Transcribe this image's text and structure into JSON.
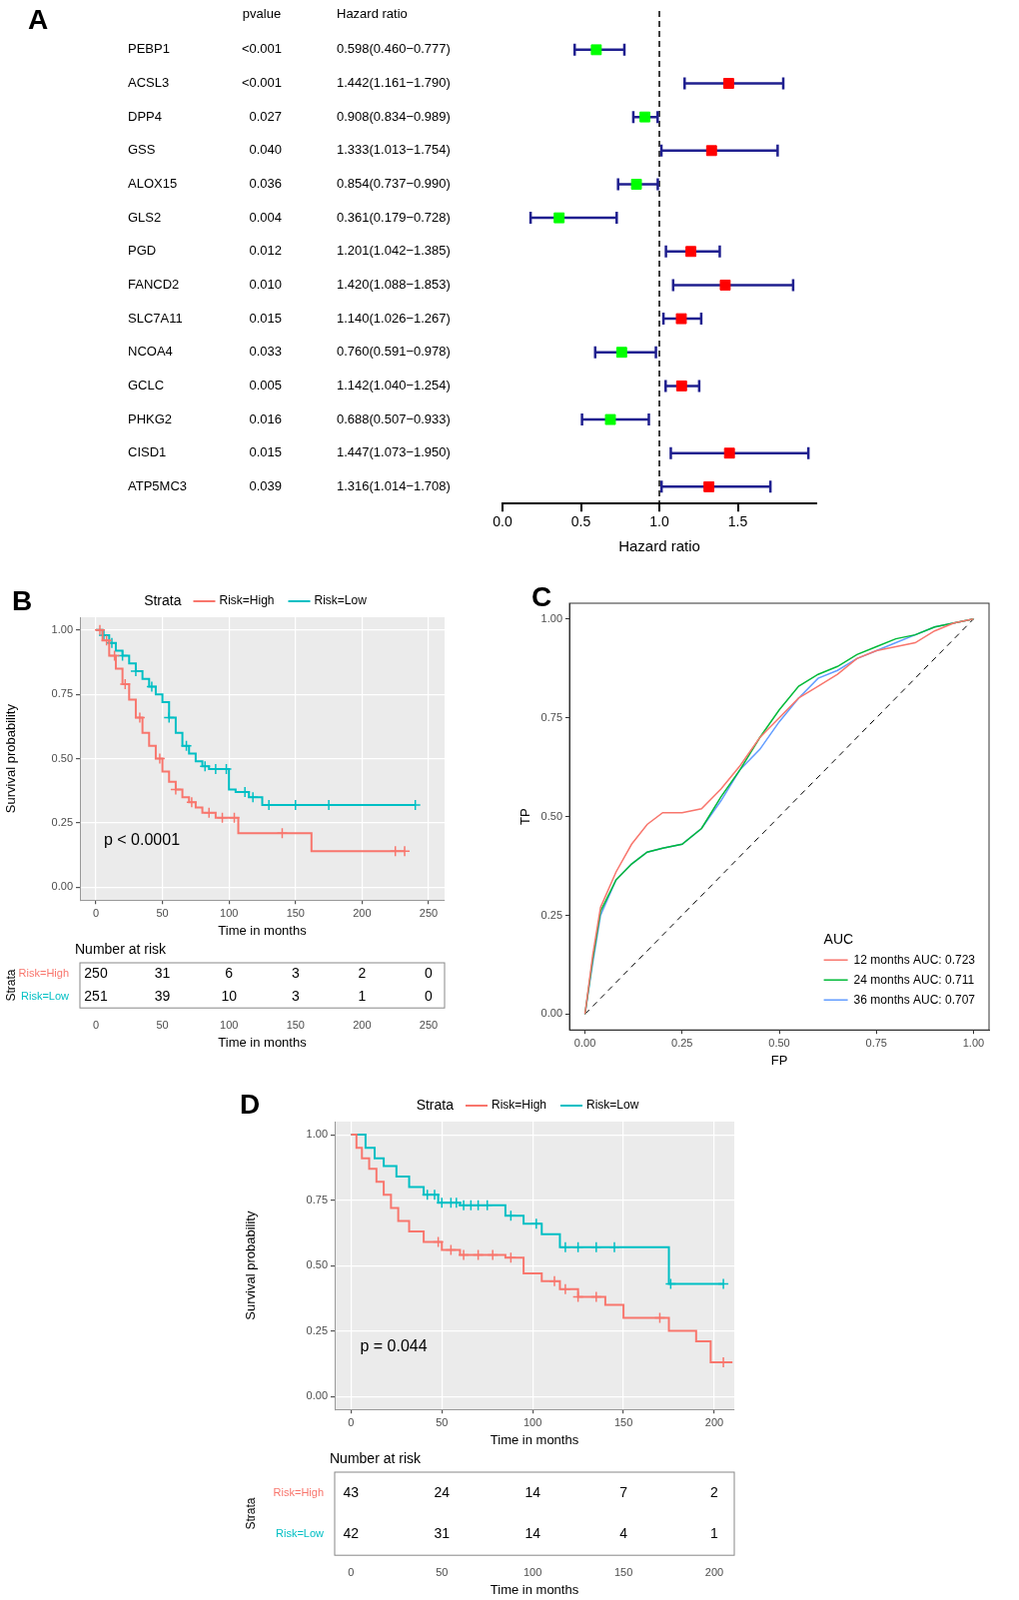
{
  "chart_data": [
    {
      "panel": "A",
      "type": "forest",
      "categories": [
        "PEBP1",
        "ACSL3",
        "DPP4",
        "GSS",
        "ALOX15",
        "GLS2",
        "PGD",
        "FANCD2",
        "SLC7A11",
        "NCOA4",
        "GCLC",
        "PHKG2",
        "CISD1",
        "ATP5MC3"
      ],
      "pvalue_header": "pvalue",
      "pvalues": [
        "<0.001",
        "<0.001",
        "0.027",
        "0.040",
        "0.036",
        "0.004",
        "0.012",
        "0.010",
        "0.015",
        "0.033",
        "0.005",
        "0.016",
        "0.015",
        "0.039"
      ],
      "value_header": "Hazard ratio",
      "values": [
        0.598,
        1.442,
        0.908,
        1.333,
        0.854,
        0.361,
        1.201,
        1.42,
        1.14,
        0.76,
        1.142,
        0.688,
        1.447,
        1.316
      ],
      "lower": [
        0.46,
        1.161,
        0.834,
        1.013,
        0.737,
        0.179,
        1.042,
        1.088,
        1.026,
        0.591,
        1.04,
        0.507,
        1.073,
        1.014
      ],
      "upper": [
        0.777,
        1.79,
        0.989,
        1.754,
        0.99,
        0.728,
        1.385,
        1.853,
        1.267,
        0.978,
        1.254,
        0.933,
        1.95,
        1.708
      ],
      "value_labels": [
        "0.598(0.460−0.777)",
        "1.442(1.161−1.790)",
        "0.908(0.834−0.989)",
        "1.333(1.013−1.754)",
        "0.854(0.737−0.990)",
        "0.361(0.179−0.728)",
        "1.201(1.042−1.385)",
        "1.420(1.088−1.853)",
        "1.140(1.026−1.267)",
        "0.760(0.591−0.978)",
        "1.142(1.040−1.254)",
        "0.688(0.507−0.933)",
        "1.447(1.073−1.950)",
        "1.316(1.014−1.708)"
      ],
      "colors": [
        "#00FF00",
        "#FF0000",
        "#00FF00",
        "#FF0000",
        "#00FF00",
        "#00FF00",
        "#FF0000",
        "#FF0000",
        "#FF0000",
        "#00FF00",
        "#FF0000",
        "#00FF00",
        "#FF0000",
        "#FF0000"
      ],
      "x_label": "Hazard ratio",
      "xlim": [
        0,
        2
      ],
      "xticks": [
        {
          "value": 0,
          "label": "0.0"
        },
        0.5,
        {
          "value": 1,
          "label": "1.0"
        },
        1.5
      ],
      "reference_line": 1,
      "marker": "square",
      "grid": false
    },
    {
      "panel": "B",
      "type": "survival",
      "legend": "top",
      "legend_title": "Strata",
      "series": [
        {
          "name": "Risk=High",
          "color": "#F8766D",
          "x": [
            0,
            5,
            10,
            15,
            20,
            25,
            30,
            35,
            40,
            45,
            50,
            55,
            60,
            65,
            70,
            75,
            80,
            90,
            100,
            107,
            162,
            232
          ],
          "values": [
            1,
            0.96,
            0.9,
            0.85,
            0.79,
            0.73,
            0.66,
            0.6,
            0.55,
            0.5,
            0.45,
            0.41,
            0.38,
            0.35,
            0.33,
            0.31,
            0.29,
            0.27,
            0.27,
            0.21,
            0.14,
            0.14
          ],
          "censor_x": [
            3,
            8,
            14,
            22,
            33,
            48,
            60,
            72,
            85,
            95,
            104,
            140,
            225,
            232
          ]
        },
        {
          "name": "Risk=Low",
          "color": "#00BFC4",
          "x": [
            0,
            5,
            10,
            15,
            20,
            25,
            30,
            35,
            40,
            45,
            50,
            55,
            60,
            65,
            70,
            75,
            80,
            85,
            100,
            105,
            115,
            125,
            240
          ],
          "values": [
            1,
            0.98,
            0.95,
            0.92,
            0.9,
            0.87,
            0.84,
            0.81,
            0.78,
            0.75,
            0.72,
            0.66,
            0.6,
            0.55,
            0.52,
            0.49,
            0.47,
            0.46,
            0.38,
            0.37,
            0.35,
            0.32,
            0.32
          ],
          "censor_x": [
            6,
            12,
            20,
            30,
            42,
            55,
            68,
            82,
            90,
            98,
            112,
            118,
            130,
            150,
            175,
            240
          ]
        }
      ],
      "x_label": "Time in months",
      "y_label": "Survival probability",
      "xlim": [
        -12,
        262
      ],
      "xticks": [
        0,
        50,
        100,
        150,
        200,
        250
      ],
      "ylim": [
        -0.05,
        1.05
      ],
      "yticks": [
        {
          "value": 0,
          "label": "0.00"
        },
        {
          "value": 0.25,
          "label": "0.25"
        },
        {
          "value": 0.5,
          "label": "0.50"
        },
        {
          "value": 0.75,
          "label": "0.75"
        },
        {
          "value": 1,
          "label": "1.00"
        }
      ],
      "grid": true,
      "annotations": [
        {
          "text": "p < 0.0001",
          "x": 6,
          "y": 0.18
        }
      ],
      "risk_table": {
        "title": "Number at risk",
        "y_label": "Strata",
        "x_label": "Time in months",
        "times": [
          0,
          50,
          100,
          150,
          200,
          250
        ],
        "rows": [
          {
            "name": "Risk=High",
            "color": "#F8766D",
            "values": [
              250,
              31,
              6,
              3,
              2,
              0
            ]
          },
          {
            "name": "Risk=Low",
            "color": "#00BFC4",
            "values": [
              251,
              39,
              10,
              3,
              1,
              0
            ]
          }
        ]
      }
    },
    {
      "panel": "C",
      "type": "line",
      "legend": "bottom right",
      "legend_title": "AUC",
      "x": [
        0,
        0.02,
        0.04,
        0.08,
        0.12,
        0.16,
        0.2,
        0.25,
        0.3,
        0.35,
        0.4,
        0.45,
        0.5,
        0.55,
        0.6,
        0.65,
        0.7,
        0.75,
        0.8,
        0.85,
        0.9,
        0.95,
        1
      ],
      "series": [
        {
          "name": "12 months AUC: 0.723",
          "color": "#F8766D",
          "values": [
            0,
            0.15,
            0.27,
            0.36,
            0.43,
            0.48,
            0.51,
            0.51,
            0.52,
            0.57,
            0.63,
            0.7,
            0.75,
            0.8,
            0.83,
            0.86,
            0.9,
            0.92,
            0.93,
            0.94,
            0.97,
            0.99,
            1
          ]
        },
        {
          "name": "24 months AUC: 0.711",
          "color": "#00BA38",
          "values": [
            0,
            0.14,
            0.26,
            0.34,
            0.38,
            0.41,
            0.42,
            0.43,
            0.47,
            0.55,
            0.62,
            0.7,
            0.77,
            0.83,
            0.86,
            0.88,
            0.91,
            0.93,
            0.95,
            0.96,
            0.98,
            0.99,
            1
          ]
        },
        {
          "name": "36 months AUC: 0.707",
          "color": "#619CFF",
          "values": [
            0,
            0.13,
            0.25,
            0.34,
            0.38,
            0.41,
            0.42,
            0.43,
            0.47,
            0.54,
            0.62,
            0.67,
            0.74,
            0.8,
            0.85,
            0.87,
            0.9,
            0.92,
            0.94,
            0.96,
            0.98,
            0.99,
            1
          ]
        }
      ],
      "x_label": "FP",
      "y_label": "TP",
      "xlim": [
        -0.04,
        1.04
      ],
      "xticks": [
        {
          "value": 0,
          "label": "0.00"
        },
        {
          "value": 0.25,
          "label": "0.25"
        },
        {
          "value": 0.5,
          "label": "0.50"
        },
        {
          "value": 0.75,
          "label": "0.75"
        },
        {
          "value": 1,
          "label": "1.00"
        }
      ],
      "ylim": [
        -0.04,
        1.04
      ],
      "yticks": [
        {
          "value": 0,
          "label": "0.00"
        },
        {
          "value": 0.25,
          "label": "0.25"
        },
        {
          "value": 0.5,
          "label": "0.50"
        },
        {
          "value": 0.75,
          "label": "0.75"
        },
        {
          "value": 1,
          "label": "1.00"
        }
      ],
      "grid": false
    },
    {
      "panel": "D",
      "type": "survival",
      "legend": "top",
      "legend_title": "Strata",
      "series": [
        {
          "name": "Risk=High",
          "color": "#F8766D",
          "x": [
            0,
            3,
            6,
            10,
            14,
            18,
            22,
            26,
            32,
            40,
            50,
            60,
            85,
            95,
            105,
            115,
            125,
            140,
            150,
            175,
            190,
            198,
            210
          ],
          "values": [
            1,
            0.95,
            0.91,
            0.87,
            0.82,
            0.77,
            0.72,
            0.67,
            0.63,
            0.59,
            0.56,
            0.54,
            0.53,
            0.47,
            0.44,
            0.41,
            0.38,
            0.35,
            0.3,
            0.25,
            0.21,
            0.13,
            0.13
          ],
          "censor_x": [
            48,
            55,
            62,
            70,
            78,
            88,
            112,
            118,
            125,
            135,
            170,
            205
          ]
        },
        {
          "name": "Risk=Low",
          "color": "#00BFC4",
          "x": [
            0,
            8,
            13,
            18,
            25,
            32,
            40,
            48,
            60,
            85,
            95,
            105,
            115,
            175,
            205
          ],
          "values": [
            1,
            0.95,
            0.91,
            0.88,
            0.84,
            0.8,
            0.77,
            0.74,
            0.73,
            0.69,
            0.66,
            0.62,
            0.57,
            0.43,
            0.43
          ],
          "censor_x": [
            42,
            46,
            50,
            55,
            58,
            62,
            66,
            70,
            75,
            88,
            102,
            118,
            125,
            135,
            145,
            176,
            205
          ]
        }
      ],
      "x_label": "Time in months",
      "y_label": "Survival probability",
      "xlim": [
        -9,
        211
      ],
      "xticks": [
        0,
        50,
        100,
        150,
        200
      ],
      "ylim": [
        -0.05,
        1.05
      ],
      "yticks": [
        {
          "value": 0,
          "label": "0.00"
        },
        {
          "value": 0.25,
          "label": "0.25"
        },
        {
          "value": 0.5,
          "label": "0.50"
        },
        {
          "value": 0.75,
          "label": "0.75"
        },
        {
          "value": 1,
          "label": "1.00"
        }
      ],
      "grid": true,
      "annotations": [
        {
          "text": "p = 0.044",
          "x": 5,
          "y": 0.19
        }
      ],
      "risk_table": {
        "title": "Number at risk",
        "y_label": "Strata",
        "x_label": "Time in months",
        "times": [
          0,
          50,
          100,
          150,
          200
        ],
        "rows": [
          {
            "name": "Risk=High",
            "color": "#F8766D",
            "values": [
              43,
              24,
              14,
              7,
              2
            ]
          },
          {
            "name": "Risk=Low",
            "color": "#00BFC4",
            "values": [
              42,
              31,
              14,
              4,
              1
            ]
          }
        ]
      }
    }
  ]
}
